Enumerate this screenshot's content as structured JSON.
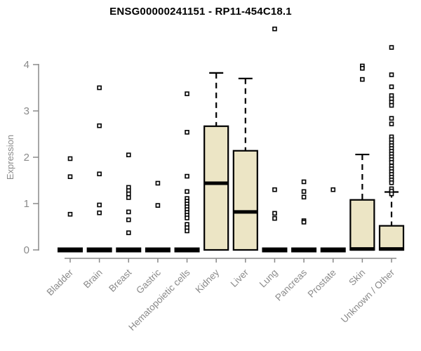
{
  "chart_data": {
    "type": "boxplot",
    "title": "ENSG00000241151 - RP11-454C18.1",
    "ylabel": "Expression",
    "xlabel": "",
    "ylim": [
      0,
      4
    ],
    "yticks": [
      "0",
      "1",
      "2",
      "3",
      "4"
    ],
    "grid": false,
    "legend": "none",
    "style": {
      "box_fill": "#ece5c5",
      "box_stroke": "#000000",
      "point_fill": "#ffffff",
      "axis_color": "#8a8a8a",
      "title_color": "#000000"
    },
    "groups": [
      {
        "label": "Bladder",
        "q1": 0,
        "median": 0,
        "q3": 0,
        "whisker_high": 0,
        "outliers": [
          1.97,
          1.58,
          0.77
        ]
      },
      {
        "label": "Brain",
        "q1": 0,
        "median": 0,
        "q3": 0,
        "whisker_high": 0,
        "outliers": [
          3.5,
          2.68,
          1.64,
          0.97,
          0.8
        ]
      },
      {
        "label": "Breast",
        "q1": 0,
        "median": 0,
        "q3": 0,
        "whisker_high": 0,
        "outliers": [
          2.05,
          1.35,
          1.28,
          1.21,
          1.13,
          0.82,
          0.65,
          0.37
        ]
      },
      {
        "label": "Gastric",
        "q1": 0,
        "median": 0,
        "q3": 0,
        "whisker_high": 0,
        "outliers": [
          1.44,
          0.96
        ]
      },
      {
        "label": "Hematopoietic cells",
        "q1": 0,
        "median": 0,
        "q3": 0,
        "whisker_high": 0,
        "outliers": [
          3.37,
          2.54,
          1.59,
          1.26,
          1.11,
          1.05,
          0.99,
          0.93,
          0.87,
          0.81,
          0.75,
          0.69,
          0.55,
          0.48,
          0.41
        ]
      },
      {
        "label": "Kidney",
        "q1": 0,
        "median": 1.44,
        "q3": 2.67,
        "whisker_high": 3.82,
        "outliers": []
      },
      {
        "label": "Liver",
        "q1": 0,
        "median": 0.82,
        "q3": 2.14,
        "whisker_high": 3.7,
        "outliers": []
      },
      {
        "label": "Lung",
        "q1": 0,
        "median": 0,
        "q3": 0,
        "whisker_high": 0,
        "outliers": [
          4.77,
          1.3,
          0.79,
          0.68
        ]
      },
      {
        "label": "Pancreas",
        "q1": 0,
        "median": 0,
        "q3": 0,
        "whisker_high": 0,
        "outliers": [
          1.47,
          1.26,
          1.14,
          0.63,
          0.6
        ]
      },
      {
        "label": "Prostate",
        "q1": 0,
        "median": 0,
        "q3": 0,
        "whisker_high": 0,
        "outliers": [
          1.3
        ]
      },
      {
        "label": "Skin",
        "q1": 0,
        "median": 0.02,
        "q3": 1.08,
        "whisker_high": 2.06,
        "outliers": [
          3.97,
          3.92,
          3.68
        ]
      },
      {
        "label": "Unknown / Other",
        "q1": 0,
        "median": 0.02,
        "q3": 0.52,
        "whisker_high": 1.25,
        "outliers": [
          4.37,
          3.78,
          3.52,
          3.33,
          3.26,
          3.19,
          3.12,
          2.84,
          2.72,
          2.44,
          2.38,
          2.31,
          2.25,
          2.19,
          2.13,
          2.07,
          2.01,
          1.95,
          1.89,
          1.81,
          1.75,
          1.69,
          1.63,
          1.57,
          1.51,
          1.45,
          1.32,
          1.27,
          1.21
        ]
      }
    ]
  }
}
